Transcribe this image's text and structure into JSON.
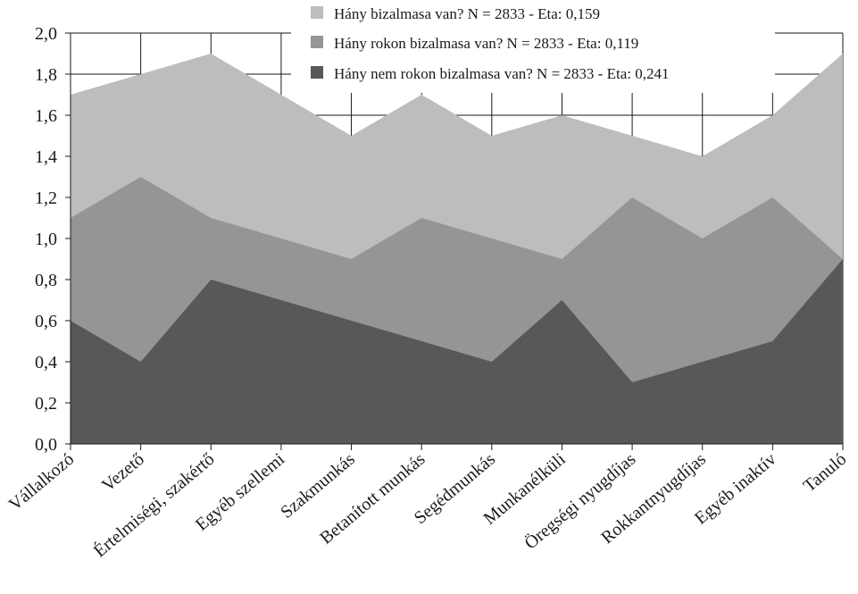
{
  "chart_data": {
    "type": "area",
    "categories": [
      "Vállalkozó",
      "Vezető",
      "Értelmiségi, szakértő",
      "Egyéb szellemi",
      "Szakmunkás",
      "Betanított munkás",
      "Segédmunkás",
      "Munkanélküli",
      "Öregségi nyugdíjas",
      "Rokkantnyugdíjas",
      "Egyéb inaktív",
      "Tanuló"
    ],
    "series": [
      {
        "name": "Hány bizalmasa van? N = 2833 - Eta: 0,159",
        "values": [
          1.7,
          1.8,
          1.9,
          1.7,
          1.5,
          1.7,
          1.5,
          1.6,
          1.5,
          1.4,
          1.6,
          1.9
        ],
        "color": "#bdbdc0"
      },
      {
        "name": "Hány rokon bizalmasa van? N = 2833 - Eta: 0,119",
        "values": [
          1.1,
          1.3,
          1.1,
          1.0,
          0.9,
          1.1,
          1.0,
          0.9,
          1.2,
          1.0,
          1.2,
          0.9
        ],
        "color": "#959597"
      },
      {
        "name": "Hány nem rokon bizalmasa van? N = 2833 - Eta: 0,241",
        "values": [
          0.6,
          0.4,
          0.8,
          0.7,
          0.6,
          0.5,
          0.4,
          0.7,
          0.3,
          0.4,
          0.5,
          0.9
        ],
        "color": "#58585a"
      }
    ],
    "yticks": [
      "0,0",
      "0,2",
      "0,4",
      "0,6",
      "0,8",
      "1,0",
      "1,2",
      "1,4",
      "1,6",
      "1,8",
      "2,0"
    ],
    "ylim": [
      0,
      2
    ],
    "grid": true,
    "legend_position": "top-right"
  }
}
